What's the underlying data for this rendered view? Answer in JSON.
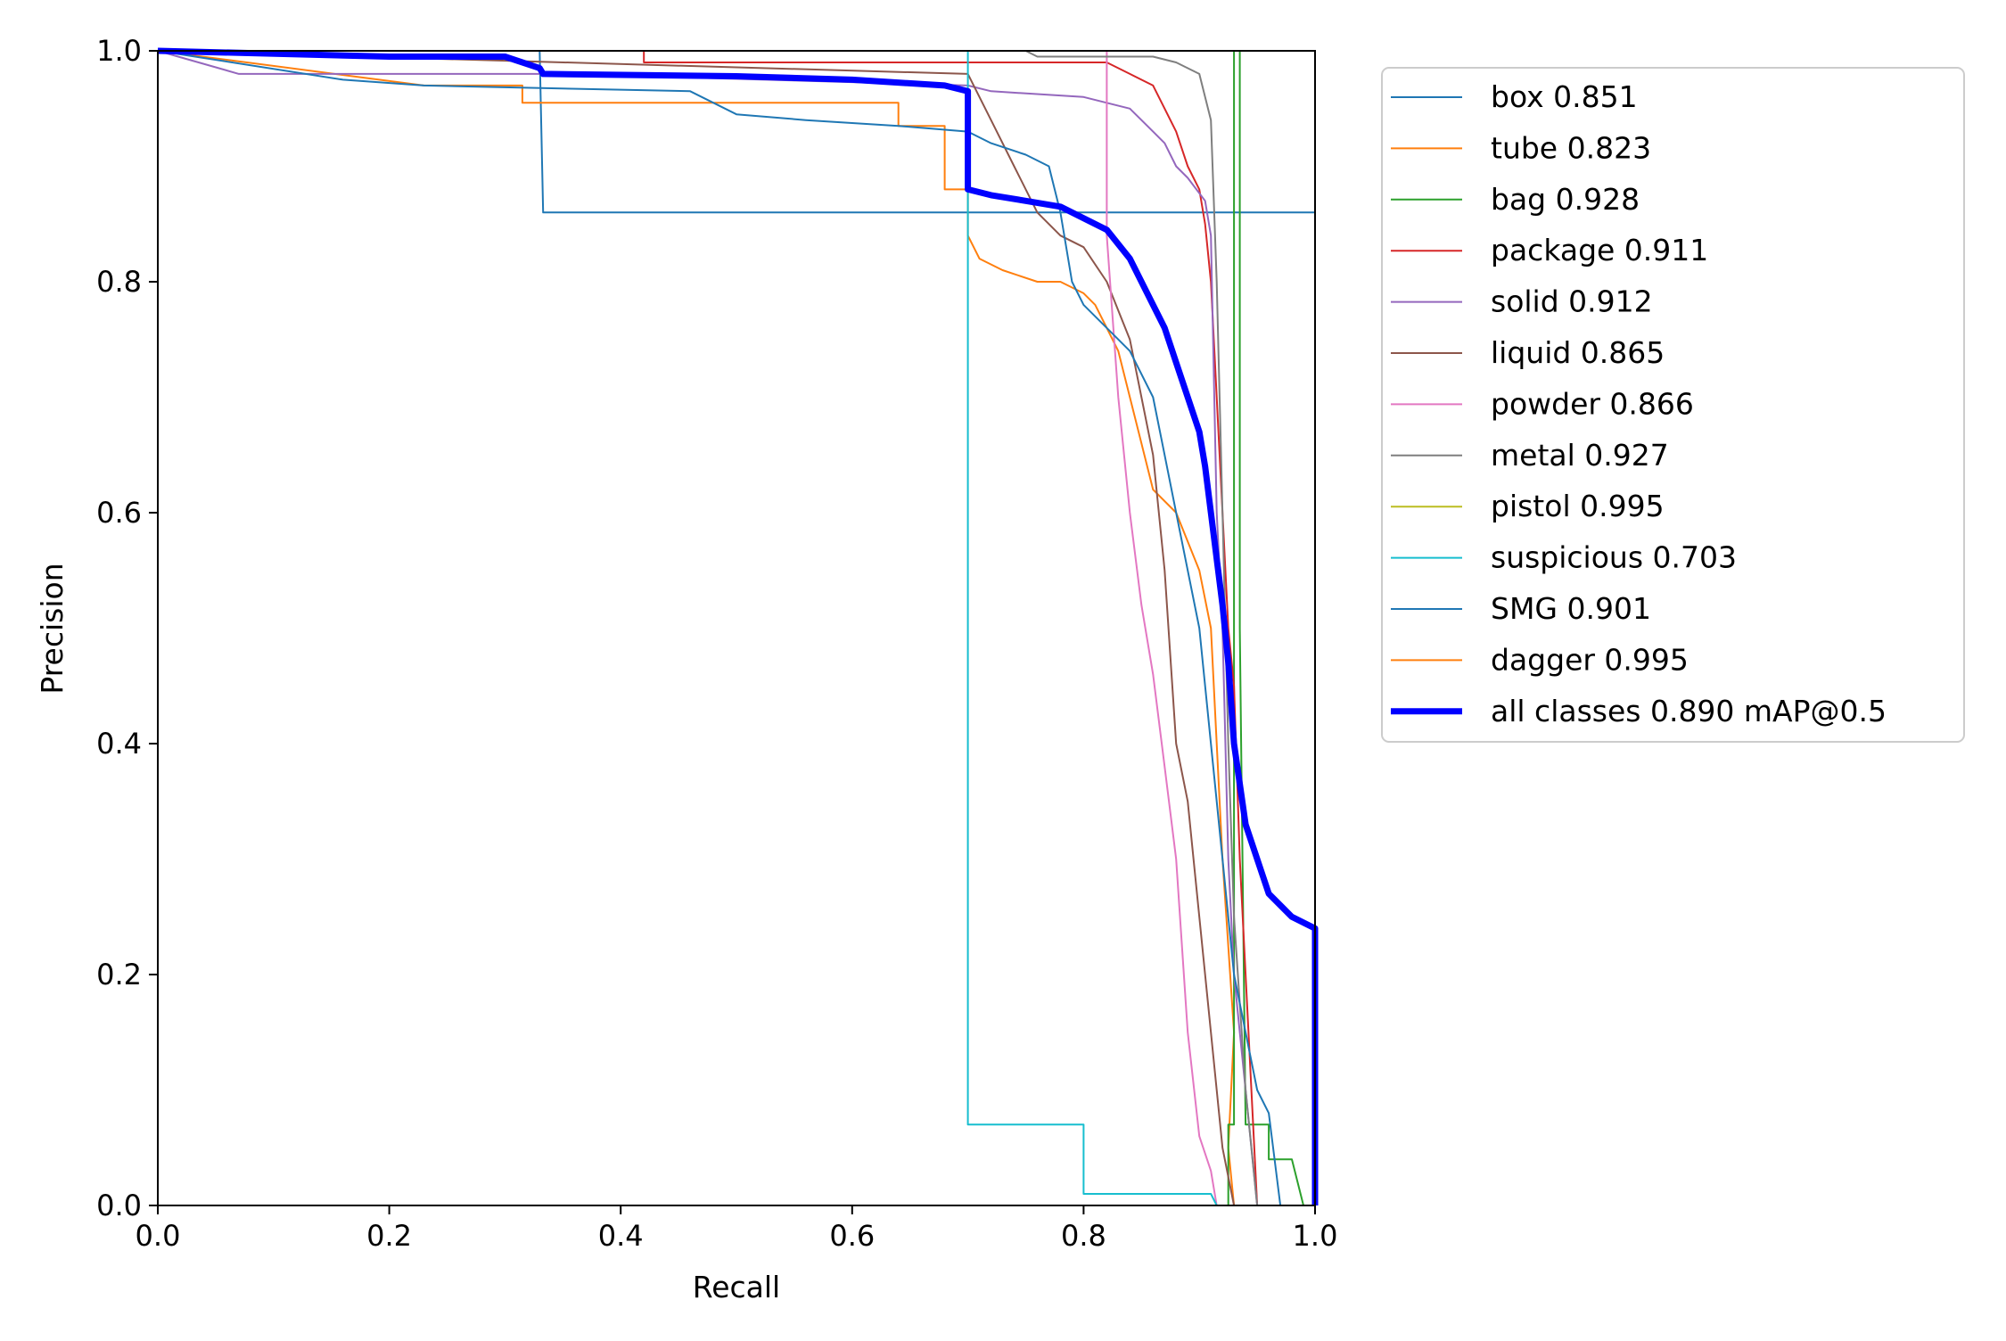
{
  "chart_data": {
    "type": "line",
    "xlabel": "Recall",
    "ylabel": "Precision",
    "xlim": [
      0.0,
      1.0
    ],
    "ylim": [
      0.0,
      1.0
    ],
    "x_ticks": [
      "0.0",
      "0.2",
      "0.4",
      "0.6",
      "0.8",
      "1.0"
    ],
    "y_ticks": [
      "0.0",
      "0.2",
      "0.4",
      "0.6",
      "0.8",
      "1.0"
    ],
    "grid": false,
    "legend_position": "outside-right",
    "series": [
      {
        "name": "box 0.851",
        "color": "#1f77b4",
        "bold": false,
        "points": [
          [
            0,
            1
          ],
          [
            0.33,
            1
          ],
          [
            0.333,
            0.86
          ],
          [
            1,
            0.86
          ]
        ]
      },
      {
        "name": "tube 0.823",
        "color": "#ff7f0e",
        "bold": false,
        "points": [
          [
            0,
            1
          ],
          [
            0.23,
            0.97
          ],
          [
            0.315,
            0.97
          ],
          [
            0.315,
            0.955
          ],
          [
            0.64,
            0.955
          ],
          [
            0.64,
            0.935
          ],
          [
            0.68,
            0.935
          ],
          [
            0.68,
            0.88
          ],
          [
            0.7,
            0.88
          ],
          [
            0.7,
            0.84
          ],
          [
            0.71,
            0.82
          ],
          [
            0.73,
            0.81
          ],
          [
            0.76,
            0.8
          ],
          [
            0.78,
            0.8
          ],
          [
            0.8,
            0.79
          ],
          [
            0.81,
            0.78
          ],
          [
            0.82,
            0.76
          ],
          [
            0.83,
            0.74
          ],
          [
            0.84,
            0.7
          ],
          [
            0.85,
            0.66
          ],
          [
            0.86,
            0.62
          ],
          [
            0.88,
            0.6
          ],
          [
            0.9,
            0.55
          ],
          [
            0.91,
            0.5
          ],
          [
            0.92,
            0.3
          ],
          [
            0.93,
            0.15
          ],
          [
            0.925,
            0.05
          ],
          [
            0.93,
            0
          ]
        ]
      },
      {
        "name": "bag 0.928",
        "color": "#2ca02c",
        "bold": false,
        "points": [
          [
            0.925,
            0
          ],
          [
            0.925,
            0.07
          ],
          [
            0.93,
            0.07
          ],
          [
            0.93,
            1
          ],
          [
            0.935,
            1
          ],
          [
            0.935,
            0.5
          ],
          [
            0.94,
            0.07
          ],
          [
            0.96,
            0.07
          ],
          [
            0.96,
            0.04
          ],
          [
            0.98,
            0.04
          ],
          [
            0.99,
            0
          ]
        ]
      },
      {
        "name": "package 0.911",
        "color": "#d62728",
        "bold": false,
        "points": [
          [
            0,
            1
          ],
          [
            0.42,
            1
          ],
          [
            0.42,
            0.99
          ],
          [
            0.82,
            0.99
          ],
          [
            0.84,
            0.98
          ],
          [
            0.86,
            0.97
          ],
          [
            0.87,
            0.95
          ],
          [
            0.88,
            0.93
          ],
          [
            0.89,
            0.9
          ],
          [
            0.9,
            0.88
          ],
          [
            0.905,
            0.85
          ],
          [
            0.91,
            0.8
          ],
          [
            0.915,
            0.7
          ],
          [
            0.92,
            0.6
          ],
          [
            0.925,
            0.5
          ],
          [
            0.93,
            0.45
          ],
          [
            0.935,
            0.3
          ],
          [
            0.94,
            0.2
          ],
          [
            0.945,
            0.1
          ],
          [
            0.95,
            0
          ]
        ]
      },
      {
        "name": "solid 0.912",
        "color": "#9467bd",
        "bold": false,
        "points": [
          [
            0,
            1
          ],
          [
            0.07,
            0.98
          ],
          [
            0.35,
            0.98
          ],
          [
            0.7,
            0.97
          ],
          [
            0.72,
            0.965
          ],
          [
            0.8,
            0.96
          ],
          [
            0.84,
            0.95
          ],
          [
            0.86,
            0.93
          ],
          [
            0.87,
            0.92
          ],
          [
            0.88,
            0.9
          ],
          [
            0.89,
            0.89
          ],
          [
            0.905,
            0.87
          ],
          [
            0.91,
            0.84
          ],
          [
            0.915,
            0.6
          ],
          [
            0.92,
            0.5
          ],
          [
            0.925,
            0.3
          ],
          [
            0.93,
            0.2
          ],
          [
            0.935,
            0.15
          ],
          [
            0.94,
            0.1
          ],
          [
            0.95,
            0
          ]
        ]
      },
      {
        "name": "liquid 0.865",
        "color": "#8c564b",
        "bold": false,
        "points": [
          [
            0,
            1
          ],
          [
            0.7,
            0.98
          ],
          [
            0.72,
            0.94
          ],
          [
            0.74,
            0.9
          ],
          [
            0.76,
            0.86
          ],
          [
            0.78,
            0.84
          ],
          [
            0.8,
            0.83
          ],
          [
            0.82,
            0.8
          ],
          [
            0.84,
            0.75
          ],
          [
            0.85,
            0.7
          ],
          [
            0.86,
            0.65
          ],
          [
            0.87,
            0.55
          ],
          [
            0.88,
            0.4
          ],
          [
            0.89,
            0.35
          ],
          [
            0.9,
            0.25
          ],
          [
            0.91,
            0.15
          ],
          [
            0.92,
            0.05
          ],
          [
            0.93,
            0
          ]
        ]
      },
      {
        "name": "powder 0.866",
        "color": "#e377c2",
        "bold": false,
        "points": [
          [
            0,
            1
          ],
          [
            0.82,
            1
          ],
          [
            0.82,
            0.84
          ],
          [
            0.83,
            0.7
          ],
          [
            0.84,
            0.6
          ],
          [
            0.85,
            0.52
          ],
          [
            0.86,
            0.46
          ],
          [
            0.87,
            0.38
          ],
          [
            0.88,
            0.3
          ],
          [
            0.89,
            0.15
          ],
          [
            0.9,
            0.06
          ],
          [
            0.91,
            0.03
          ],
          [
            0.915,
            0
          ]
        ]
      },
      {
        "name": "metal 0.927",
        "color": "#7f7f7f",
        "bold": false,
        "points": [
          [
            0,
            1
          ],
          [
            0.75,
            1
          ],
          [
            0.76,
            0.995
          ],
          [
            0.86,
            0.995
          ],
          [
            0.88,
            0.99
          ],
          [
            0.9,
            0.98
          ],
          [
            0.91,
            0.94
          ],
          [
            0.915,
            0.8
          ],
          [
            0.92,
            0.6
          ],
          [
            0.925,
            0.4
          ],
          [
            0.93,
            0.25
          ],
          [
            0.94,
            0.1
          ],
          [
            0.95,
            0
          ]
        ]
      },
      {
        "name": "pistol 0.995",
        "color": "#bcbd22",
        "bold": false,
        "points": [
          [
            0,
            1
          ],
          [
            1,
            1
          ],
          [
            1,
            0
          ]
        ]
      },
      {
        "name": "suspicious 0.703",
        "color": "#17becf",
        "bold": false,
        "points": [
          [
            0,
            1
          ],
          [
            0.7,
            1
          ],
          [
            0.7,
            0.07
          ],
          [
            0.8,
            0.07
          ],
          [
            0.8,
            0.01
          ],
          [
            0.91,
            0.01
          ],
          [
            0.915,
            0
          ]
        ]
      },
      {
        "name": "SMG 0.901",
        "color": "#1f77b4",
        "bold": false,
        "points": [
          [
            0,
            1
          ],
          [
            0.16,
            0.975
          ],
          [
            0.23,
            0.97
          ],
          [
            0.46,
            0.965
          ],
          [
            0.5,
            0.945
          ],
          [
            0.56,
            0.94
          ],
          [
            0.64,
            0.935
          ],
          [
            0.7,
            0.93
          ],
          [
            0.72,
            0.92
          ],
          [
            0.75,
            0.91
          ],
          [
            0.77,
            0.9
          ],
          [
            0.78,
            0.86
          ],
          [
            0.79,
            0.8
          ],
          [
            0.8,
            0.78
          ],
          [
            0.82,
            0.76
          ],
          [
            0.84,
            0.74
          ],
          [
            0.86,
            0.7
          ],
          [
            0.87,
            0.65
          ],
          [
            0.88,
            0.6
          ],
          [
            0.9,
            0.5
          ],
          [
            0.91,
            0.4
          ],
          [
            0.92,
            0.3
          ],
          [
            0.93,
            0.2
          ],
          [
            0.94,
            0.15
          ],
          [
            0.95,
            0.1
          ],
          [
            0.96,
            0.08
          ],
          [
            0.97,
            0
          ]
        ]
      },
      {
        "name": "dagger 0.995",
        "color": "#ff7f0e",
        "bold": false,
        "points": [
          [
            0,
            1
          ],
          [
            1,
            1
          ],
          [
            1,
            0
          ]
        ]
      },
      {
        "name": "all classes 0.890 mAP@0.5",
        "color": "#0000ff",
        "bold": true,
        "points": [
          [
            0,
            1
          ],
          [
            0.2,
            0.995
          ],
          [
            0.3,
            0.995
          ],
          [
            0.33,
            0.985
          ],
          [
            0.333,
            0.98
          ],
          [
            0.5,
            0.978
          ],
          [
            0.6,
            0.975
          ],
          [
            0.68,
            0.97
          ],
          [
            0.7,
            0.965
          ],
          [
            0.7,
            0.88
          ],
          [
            0.72,
            0.875
          ],
          [
            0.75,
            0.87
          ],
          [
            0.78,
            0.865
          ],
          [
            0.8,
            0.855
          ],
          [
            0.82,
            0.845
          ],
          [
            0.84,
            0.82
          ],
          [
            0.86,
            0.78
          ],
          [
            0.87,
            0.76
          ],
          [
            0.88,
            0.73
          ],
          [
            0.89,
            0.7
          ],
          [
            0.9,
            0.67
          ],
          [
            0.905,
            0.64
          ],
          [
            0.91,
            0.6
          ],
          [
            0.915,
            0.56
          ],
          [
            0.92,
            0.52
          ],
          [
            0.925,
            0.47
          ],
          [
            0.93,
            0.4
          ],
          [
            0.94,
            0.33
          ],
          [
            0.95,
            0.3
          ],
          [
            0.96,
            0.27
          ],
          [
            0.98,
            0.25
          ],
          [
            1.0,
            0.24
          ],
          [
            1.0,
            0
          ]
        ]
      }
    ]
  }
}
